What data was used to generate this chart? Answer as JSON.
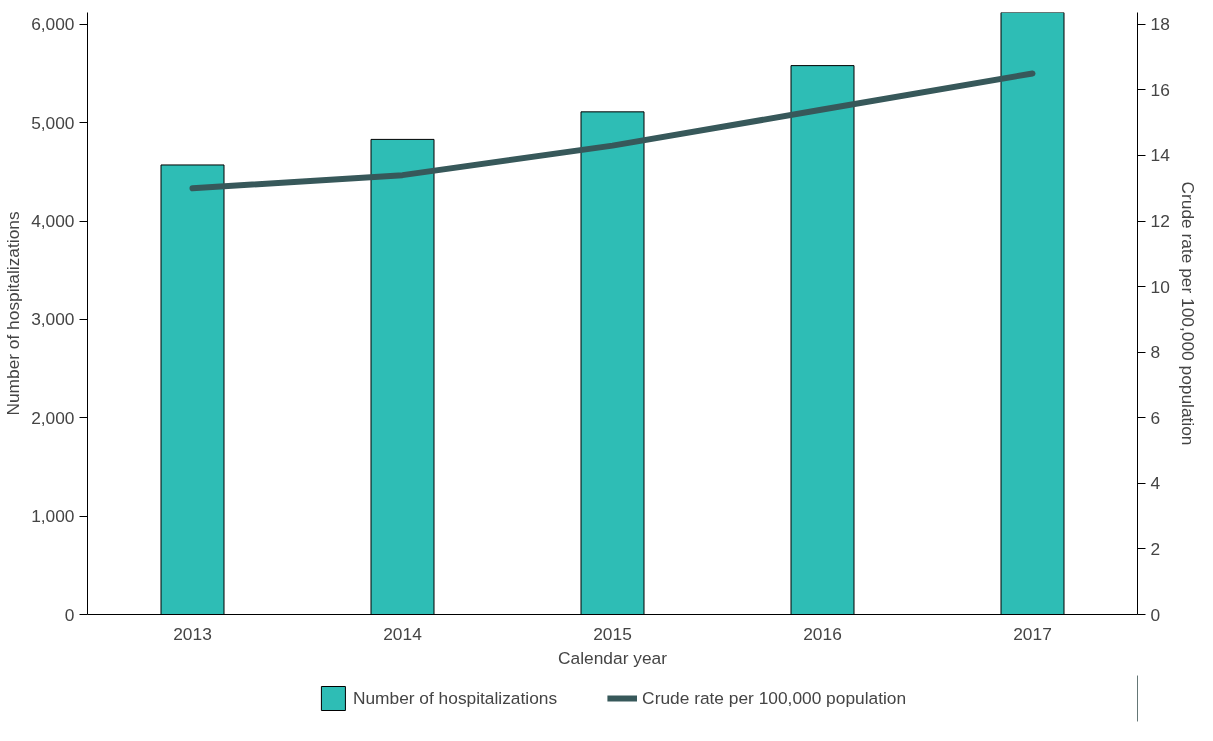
{
  "chart_data": {
    "type": "bar",
    "xlabel": "Calendar year",
    "ylabel": "Number of hospitalizations",
    "y2label": "Crude rate per 100,000 population",
    "categories": [
      "2013",
      "2014",
      "2015",
      "2016",
      "2017"
    ],
    "series": [
      {
        "name": "Number of hospitalizations",
        "color": "#2ebdb5",
        "values": [
          4570,
          4830,
          5110,
          5580,
          6120
        ]
      },
      {
        "name": "Crude rate per 100,000 population",
        "type": "line",
        "axis": "y2",
        "color": "#37585a",
        "values": [
          13.0,
          13.4,
          14.3,
          15.4,
          16.5
        ]
      }
    ],
    "ylim": [
      0,
      6120
    ],
    "yticks": [
      0,
      {
        "value": 1000,
        "label": "1,000"
      },
      {
        "value": 2000,
        "label": "2,000"
      },
      {
        "value": 3000,
        "label": "3,000"
      },
      {
        "value": 4000,
        "label": "4,000"
      },
      {
        "value": 5000,
        "label": "5,000"
      },
      {
        "value": 6000,
        "label": "6,000"
      }
    ],
    "y2lim": [
      0,
      18.36
    ],
    "y2ticks": [
      0,
      2,
      4,
      6,
      8,
      10,
      12,
      14,
      16,
      18
    ],
    "grid": false,
    "legend": "bottom",
    "marker": "none",
    "line_style": "solid"
  }
}
